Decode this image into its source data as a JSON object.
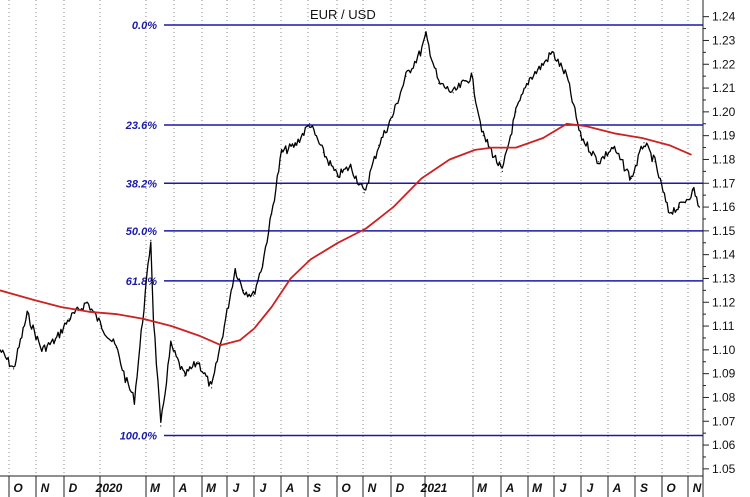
{
  "chart_data": {
    "type": "line",
    "title": "EUR / USD",
    "ylim": [
      1.047,
      1.247
    ],
    "y_ticks": [
      "1.05",
      "1.06",
      "1.07",
      "1.08",
      "1.09",
      "1.10",
      "1.11",
      "1.12",
      "1.13",
      "1.14",
      "1.15",
      "1.16",
      "1.17",
      "1.18",
      "1.19",
      "1.20",
      "1.21",
      "1.22",
      "1.23",
      "1.24"
    ],
    "x_ticks": [
      "O",
      "N",
      "D",
      "2020",
      "M",
      "A",
      "M",
      "J",
      "J",
      "A",
      "S",
      "O",
      "N",
      "D",
      "2021",
      "M",
      "A",
      "M",
      "J",
      "J",
      "A",
      "S",
      "O",
      "N"
    ],
    "grid": "vertical dotted",
    "fibonacci_levels": [
      {
        "label": "0.0%",
        "value": 1.2365
      },
      {
        "label": "23.6%",
        "value": 1.1945
      },
      {
        "label": "38.2%",
        "value": 1.17
      },
      {
        "label": "50.0%",
        "value": 1.15
      },
      {
        "label": "61.8%",
        "value": 1.129
      },
      {
        "label": "100.0%",
        "value": 1.064
      }
    ],
    "series": [
      {
        "type": "price",
        "color": "#000000",
        "x": [
          "2019-09-25",
          "2019-10-10",
          "2019-10-25",
          "2019-11-10",
          "2019-11-25",
          "2019-12-10",
          "2019-12-30",
          "2020-01-15",
          "2020-01-31",
          "2020-02-10",
          "2020-02-20",
          "2020-03-09",
          "2020-03-12",
          "2020-03-20",
          "2020-03-31",
          "2020-04-15",
          "2020-04-30",
          "2020-05-15",
          "2020-05-29",
          "2020-06-10",
          "2020-06-19",
          "2020-06-30",
          "2020-07-10",
          "2020-07-20",
          "2020-07-31",
          "2020-08-15",
          "2020-08-31",
          "2020-09-15",
          "2020-09-30",
          "2020-10-15",
          "2020-10-30",
          "2020-11-15",
          "2020-11-30",
          "2020-12-15",
          "2020-12-31",
          "2021-01-06",
          "2021-01-20",
          "2021-02-05",
          "2021-02-25",
          "2021-03-10",
          "2021-03-31",
          "2021-04-15",
          "2021-04-30",
          "2021-05-15",
          "2021-05-25",
          "2021-06-10",
          "2021-06-25",
          "2021-07-15",
          "2021-07-31",
          "2021-08-20",
          "2021-09-03",
          "2021-09-15",
          "2021-09-30",
          "2021-10-12",
          "2021-10-28",
          "2021-11-03"
        ],
        "y": [
          1.1,
          1.092,
          1.115,
          1.1,
          1.104,
          1.113,
          1.12,
          1.11,
          1.101,
          1.088,
          1.079,
          1.146,
          1.113,
          1.068,
          1.102,
          1.089,
          1.095,
          1.084,
          1.11,
          1.134,
          1.125,
          1.123,
          1.136,
          1.157,
          1.183,
          1.186,
          1.195,
          1.183,
          1.173,
          1.177,
          1.166,
          1.186,
          1.198,
          1.215,
          1.225,
          1.232,
          1.212,
          1.208,
          1.215,
          1.19,
          1.175,
          1.2,
          1.214,
          1.22,
          1.225,
          1.215,
          1.19,
          1.179,
          1.185,
          1.172,
          1.187,
          1.179,
          1.158,
          1.16,
          1.167,
          1.16
        ]
      },
      {
        "type": "moving-average",
        "color": "#cc2222",
        "x": [
          "2019-09-25",
          "2019-11-01",
          "2019-12-01",
          "2020-01-01",
          "2020-02-01",
          "2020-03-01",
          "2020-04-01",
          "2020-05-01",
          "2020-05-25",
          "2020-06-15",
          "2020-07-01",
          "2020-07-20",
          "2020-08-10",
          "2020-09-01",
          "2020-10-01",
          "2020-11-01",
          "2020-12-01",
          "2021-01-01",
          "2021-02-01",
          "2021-03-01",
          "2021-03-20",
          "2021-04-15",
          "2021-05-15",
          "2021-06-10",
          "2021-07-01",
          "2021-08-01",
          "2021-09-01",
          "2021-10-01",
          "2021-10-25"
        ],
        "y": [
          1.125,
          1.121,
          1.118,
          1.116,
          1.115,
          1.113,
          1.11,
          1.106,
          1.102,
          1.104,
          1.109,
          1.118,
          1.13,
          1.138,
          1.145,
          1.151,
          1.16,
          1.172,
          1.18,
          1.184,
          1.185,
          1.185,
          1.189,
          1.195,
          1.194,
          1.191,
          1.189,
          1.186,
          1.182
        ]
      }
    ]
  }
}
